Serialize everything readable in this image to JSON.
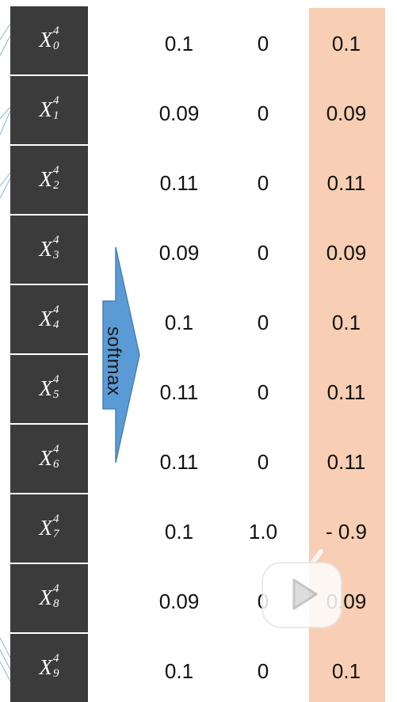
{
  "nodes": [
    {
      "base": "X",
      "sup": "4",
      "sub": "0"
    },
    {
      "base": "X",
      "sup": "4",
      "sub": "1"
    },
    {
      "base": "X",
      "sup": "4",
      "sub": "2"
    },
    {
      "base": "X",
      "sup": "4",
      "sub": "3"
    },
    {
      "base": "X",
      "sup": "4",
      "sub": "4"
    },
    {
      "base": "X",
      "sup": "4",
      "sub": "5"
    },
    {
      "base": "X",
      "sup": "4",
      "sub": "6"
    },
    {
      "base": "X",
      "sup": "4",
      "sub": "7"
    },
    {
      "base": "X",
      "sup": "4",
      "sub": "8"
    },
    {
      "base": "X",
      "sup": "4",
      "sub": "9"
    }
  ],
  "softmax_values": [
    "0.1",
    "0.09",
    "0.11",
    "0.09",
    "0.1",
    "0.11",
    "0.11",
    "0.1",
    "0.09",
    "0.1"
  ],
  "target_values": [
    "0",
    "0",
    "0",
    "0",
    "0",
    "0",
    "0",
    "1.0",
    "0",
    "0"
  ],
  "result_values": [
    "0.1",
    "0.09",
    "0.11",
    "0.09",
    "0.1",
    "0.11",
    "0.11",
    "- 0.9",
    "0.09",
    "0.1"
  ],
  "arrow": {
    "label": "softmax",
    "color": "#5b9bd5"
  },
  "colors": {
    "node": "#3b3b3b",
    "result_band": "#f8cfb4",
    "lines": "#8fb3d9"
  },
  "overlay": {
    "icon": "play-icon"
  }
}
